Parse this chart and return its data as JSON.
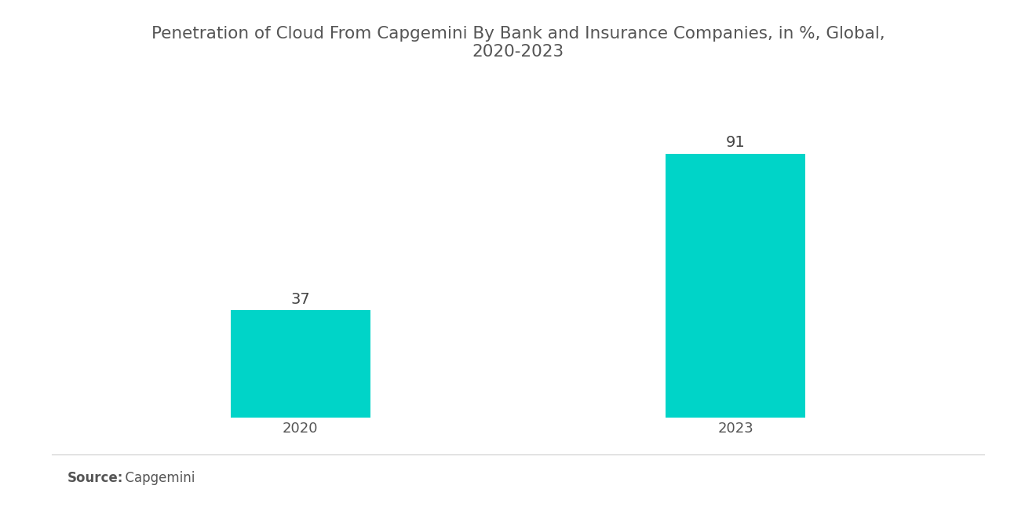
{
  "title": "Penetration of Cloud From Capgemini By Bank and Insurance Companies, in %, Global,\n2020-2023",
  "categories": [
    "2020",
    "2023"
  ],
  "values": [
    37,
    91
  ],
  "bar_color": "#00D4C8",
  "bar_width": 0.32,
  "background_color": "#ffffff",
  "title_fontsize": 15.5,
  "tick_fontsize": 13,
  "value_fontsize": 14,
  "source_bold": "Source:",
  "source_normal": "  Capgemini",
  "ylim": [
    0,
    108
  ],
  "title_color": "#555555",
  "tick_color": "#555555",
  "value_color": "#444444",
  "source_fontsize": 12,
  "x_positions": [
    1,
    2
  ]
}
